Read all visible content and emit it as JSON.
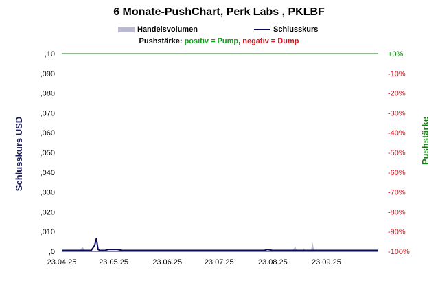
{
  "chart_data": {
    "type": "line",
    "title": "6 Monate-PushChart, Perk Labs , PKLBF",
    "legend": {
      "volume_label": "Handelsvolumen",
      "close_label": "Schlusskurs"
    },
    "push_legend": {
      "label": "Pushstärke: ",
      "positive": "positiv = Pump",
      "separator": ", ",
      "negative": "negativ = Dump"
    },
    "ylabel": "Schlusskurs USD",
    "ylabel_right": "Pushstärke",
    "ylim": [
      0,
      0.1
    ],
    "ylim_right": [
      -100,
      0
    ],
    "y_ticks": [
      ",0",
      ",010",
      ",020",
      ",030",
      ",040",
      ",050",
      ",060",
      ",070",
      ",080",
      ",090",
      ",10"
    ],
    "y_right_ticks": [
      "-100%",
      "-90%",
      "-80%",
      "-70%",
      "-60%",
      "-50%",
      "-40%",
      "-30%",
      "-20%",
      "-10%",
      "+0%"
    ],
    "x_ticks": [
      "23.04.25",
      "23.05.25",
      "23.06.25",
      "23.07.25",
      "23.08.25",
      "23.09.25"
    ],
    "x_range": [
      "2025-04-23",
      "2025-10-23"
    ],
    "grid": false,
    "legend_position": "top",
    "colors": {
      "close": "#0a0a5a",
      "volume": "#b9b9cf",
      "push_zero_line": "#118011",
      "push_negative": "#e0141e"
    },
    "series": [
      {
        "name": "Schlusskurs",
        "x": [
          "2025-04-23",
          "2025-05-10",
          "2025-05-12",
          "2025-05-13",
          "2025-05-14",
          "2025-05-15",
          "2025-05-18",
          "2025-05-20",
          "2025-05-25",
          "2025-05-28",
          "2025-06-05",
          "2025-08-18",
          "2025-08-20",
          "2025-08-23",
          "2025-10-23"
        ],
        "values": [
          0.0005,
          0.0005,
          0.003,
          0.0065,
          0.001,
          0.0005,
          0.0005,
          0.001,
          0.001,
          0.0005,
          0.0005,
          0.0005,
          0.001,
          0.0005,
          0.0005
        ]
      },
      {
        "name": "Handelsvolumen",
        "x": [
          "2025-05-03",
          "2025-05-05",
          "2025-05-07",
          "2025-05-25",
          "2025-05-28",
          "2025-06-01",
          "2025-09-03",
          "2025-09-05",
          "2025-09-06",
          "2025-09-09",
          "2025-09-10",
          "2025-09-11",
          "2025-09-12",
          "2025-09-14",
          "2025-09-15",
          "2025-09-16",
          "2025-09-18"
        ],
        "values": [
          0,
          0.0022,
          0,
          0,
          0.0008,
          0,
          0,
          0.0025,
          0,
          0,
          0.0015,
          0,
          0,
          0,
          0.0045,
          0,
          0
        ]
      }
    ]
  }
}
